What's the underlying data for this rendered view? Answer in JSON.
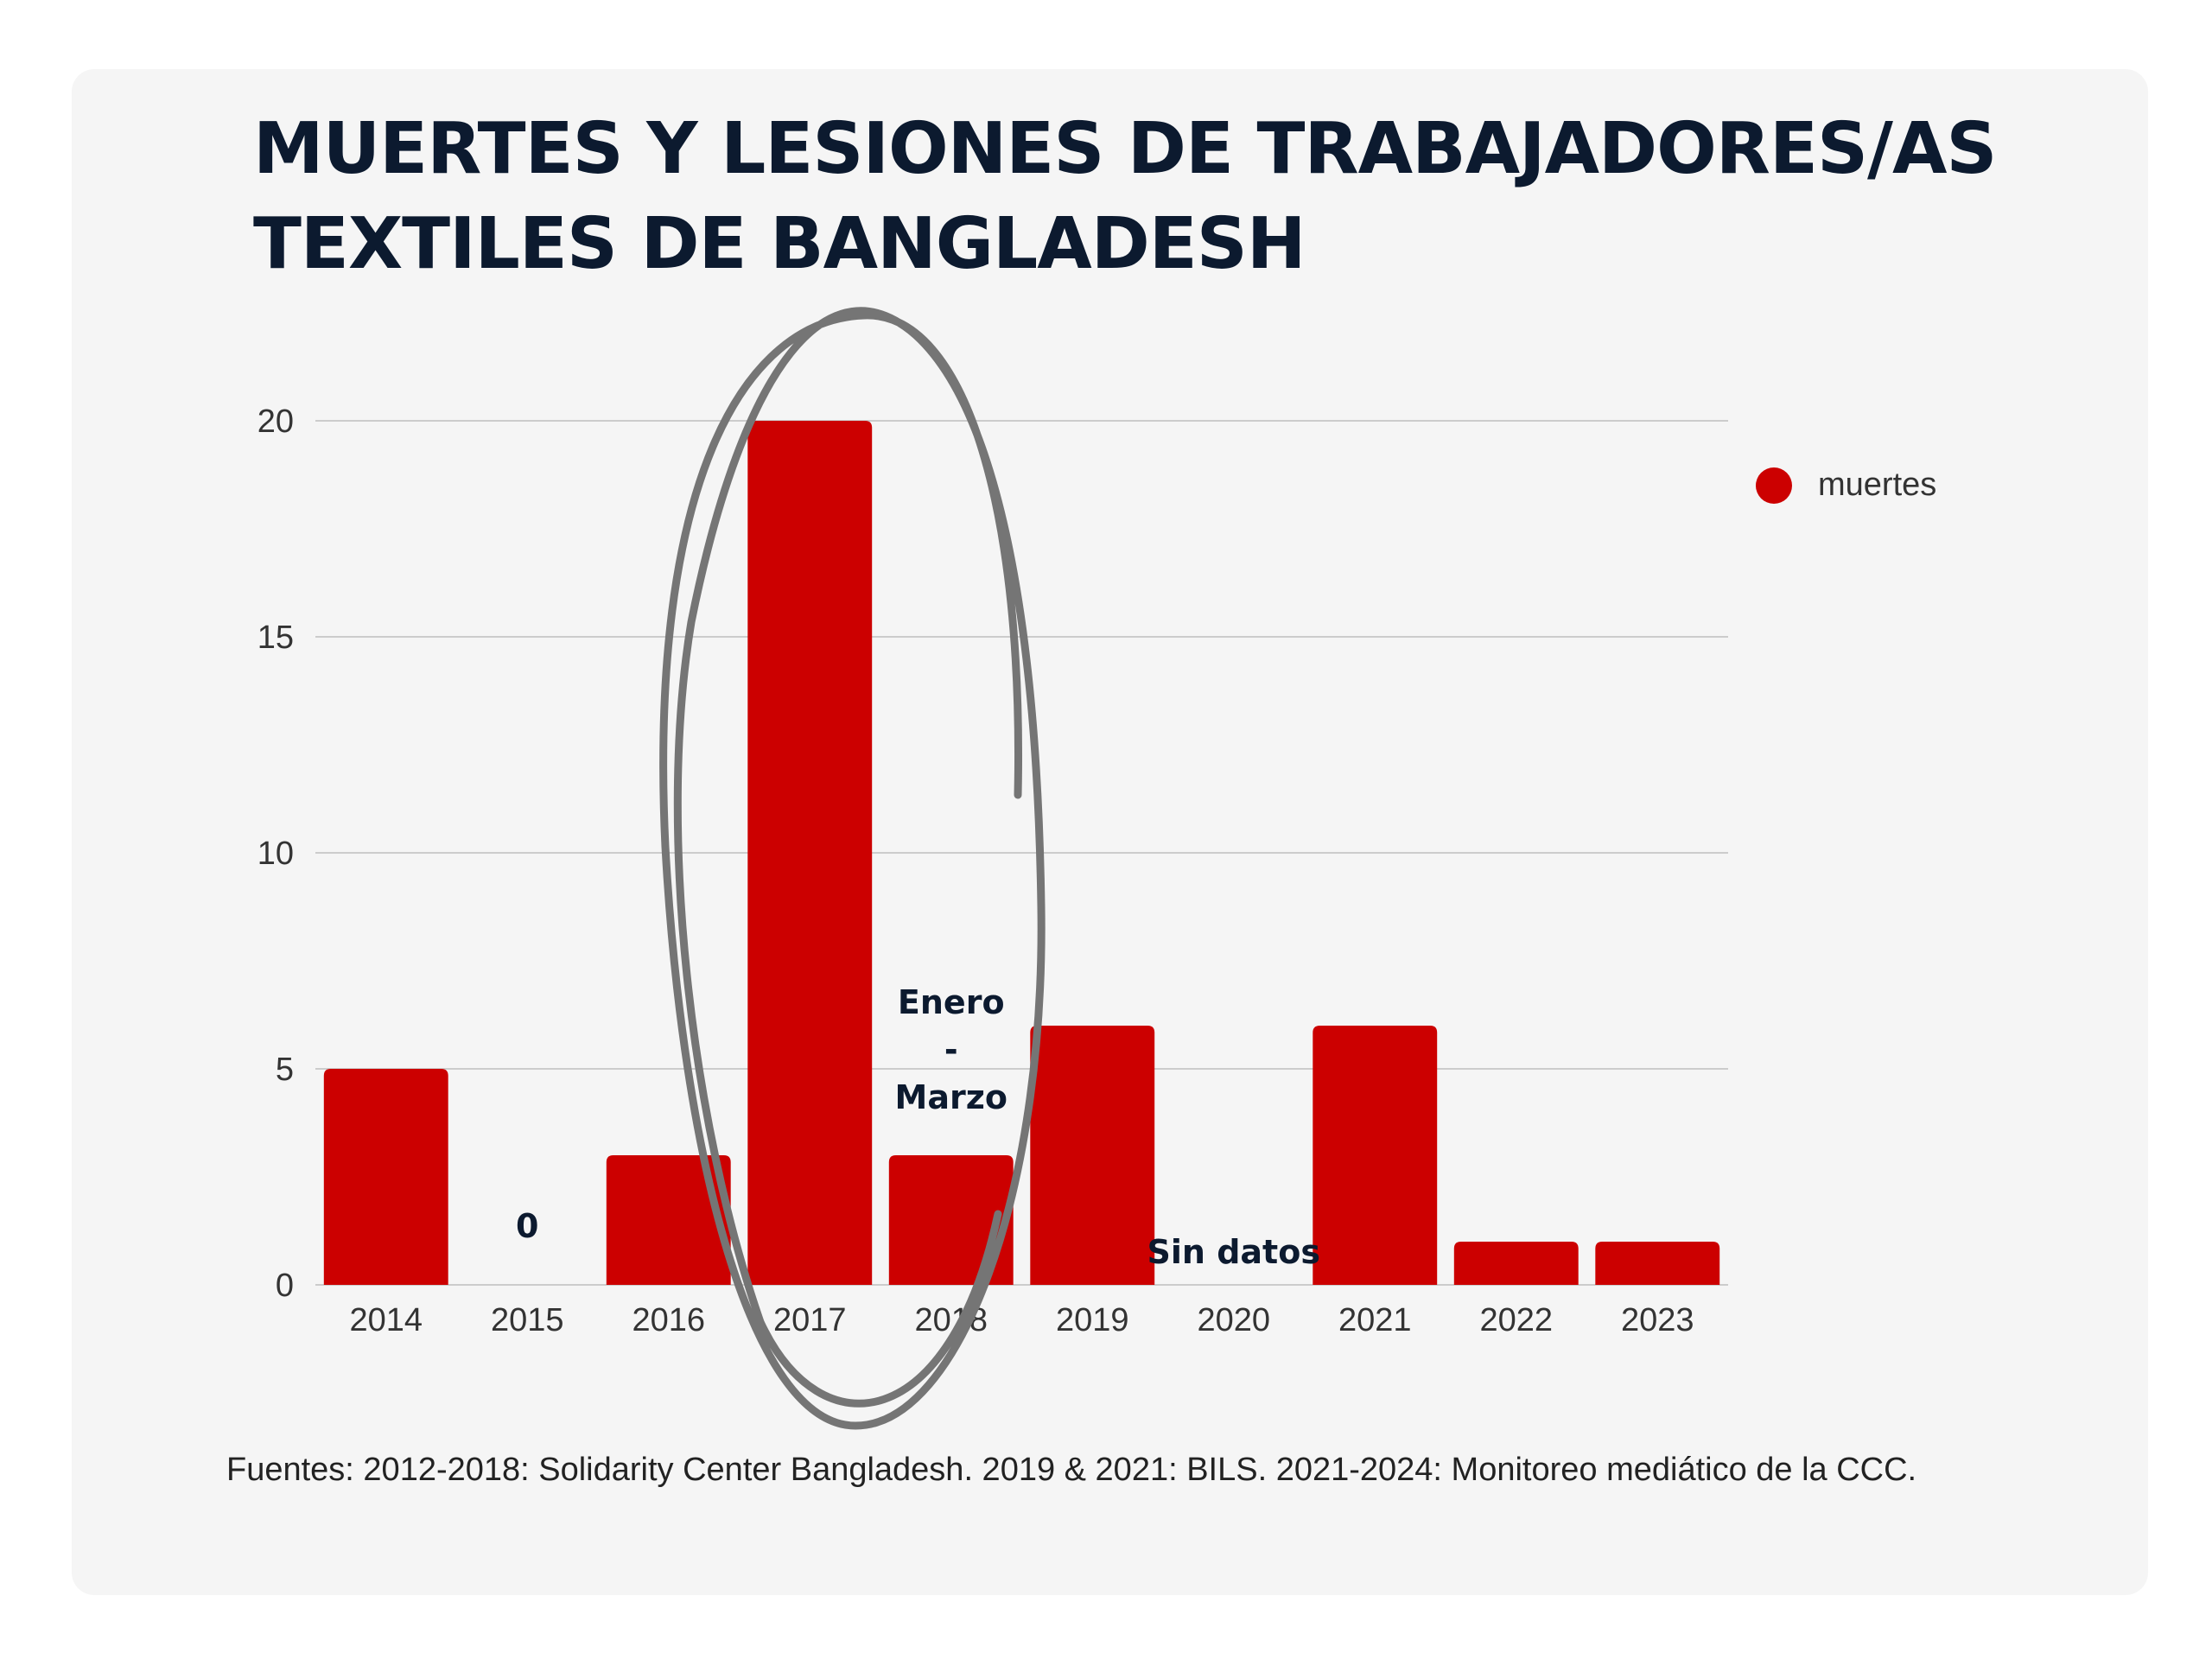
{
  "title_lines": [
    "MUERTES Y LESIONES DE TRABAJADORES/AS",
    "TEXTILES DE BANGLADESH"
  ],
  "colors": {
    "bar": "#cc0000",
    "text_dark": "#0c1a2f",
    "axis_text": "#333333",
    "grid": "#cccccc",
    "annotation_circle": "#757575"
  },
  "chart_data": {
    "type": "bar",
    "categories": [
      "2014",
      "2015",
      "2016",
      "2017",
      "2018",
      "2019",
      "2020",
      "2021",
      "2022",
      "2023"
    ],
    "series": [
      {
        "name": "muertes",
        "values": [
          5,
          0,
          3,
          20,
          3,
          6,
          0,
          6,
          1,
          1
        ]
      }
    ],
    "ylim": [
      0,
      20
    ],
    "yticks": [
      0,
      5,
      10,
      15,
      20
    ],
    "ytick_labels": [
      "0",
      "5",
      "10",
      "15",
      "20"
    ],
    "grid": true,
    "legend_position": "right",
    "annotations": [
      {
        "category": "2015",
        "text": "0"
      },
      {
        "category": "2018",
        "lines": [
          "Enero",
          "-",
          "Marzo"
        ]
      },
      {
        "category": "2020",
        "text": "Sin datos"
      }
    ],
    "highlight": {
      "categories": [
        "2017",
        "2018"
      ],
      "shape": "hand-drawn ellipse"
    }
  },
  "legend": {
    "label": "muertes"
  },
  "source": "Fuentes: 2012-2018: Solidarity Center Bangladesh. 2019 & 2021: BILS. 2021-2024: Monitoreo mediático de la CCC."
}
